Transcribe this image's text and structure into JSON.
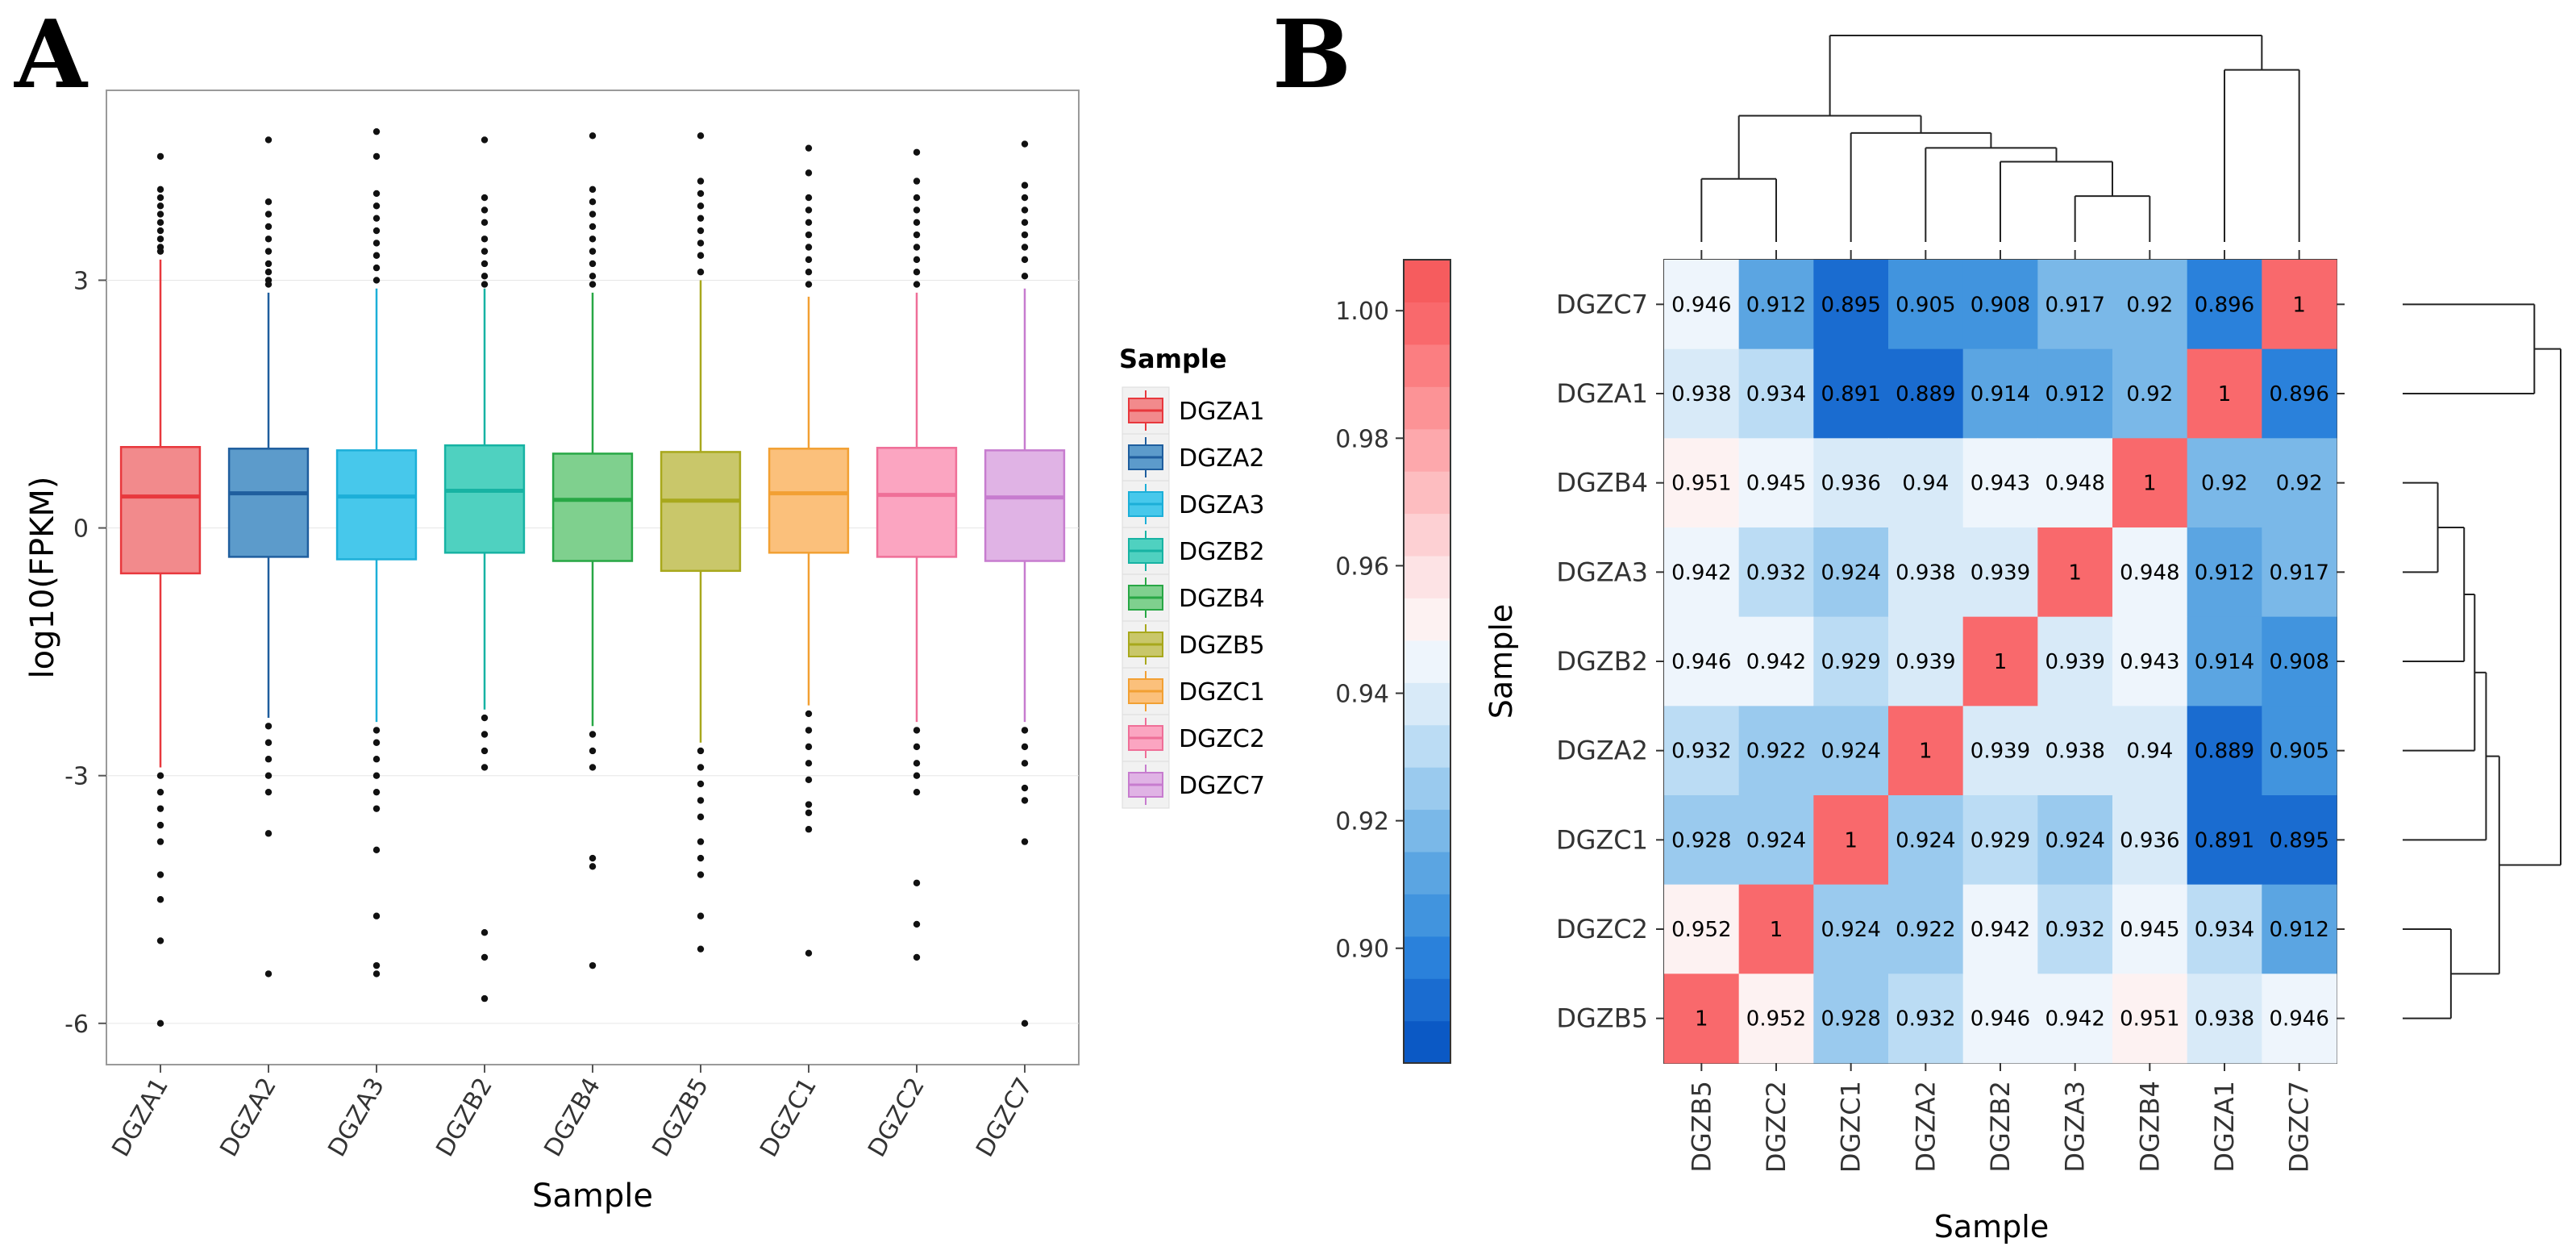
{
  "figure": {
    "panel_a_letter": "A",
    "panel_b_letter": "B"
  },
  "chart_data": [
    {
      "type": "box",
      "title": "",
      "xlabel": "Sample",
      "ylabel": "log10(FPKM)",
      "ylim": [
        -6.5,
        5.3
      ],
      "yticks": [
        3,
        0,
        -3,
        -6
      ],
      "ytick_labels": [
        "3",
        "0",
        "-3",
        "-6"
      ],
      "legend": {
        "title": "Sample",
        "position": "right",
        "entries": [
          "DGZA1",
          "DGZA2",
          "DGZA3",
          "DGZB2",
          "DGZB4",
          "DGZB5",
          "DGZC1",
          "DGZC2",
          "DGZC7"
        ]
      },
      "series": [
        {
          "name": "DGZA1",
          "color": "#E8383D",
          "fill": "#F28A8C",
          "q1": -0.55,
          "median": 0.38,
          "q3": 0.98,
          "whisker_low": -2.9,
          "whisker_high": 3.25,
          "outliers": [
            4.5,
            4.1,
            4.0,
            3.9,
            3.8,
            3.7,
            3.6,
            3.5,
            3.4,
            3.35,
            -3.0,
            -3.2,
            -3.4,
            -3.6,
            -3.8,
            -4.2,
            -4.5,
            -5.0,
            -6.0
          ]
        },
        {
          "name": "DGZA2",
          "color": "#1F5E9E",
          "fill": "#5C9BCB",
          "q1": -0.35,
          "median": 0.42,
          "q3": 0.96,
          "whisker_low": -2.3,
          "whisker_high": 2.85,
          "outliers": [
            4.7,
            3.95,
            3.8,
            3.65,
            3.5,
            3.35,
            3.2,
            3.1,
            3.0,
            2.95,
            -2.4,
            -2.6,
            -2.8,
            -3.0,
            -3.2,
            -3.7,
            -5.4
          ]
        },
        {
          "name": "DGZA3",
          "color": "#1CAFD8",
          "fill": "#47C8EB",
          "q1": -0.38,
          "median": 0.38,
          "q3": 0.94,
          "whisker_low": -2.35,
          "whisker_high": 2.9,
          "outliers": [
            4.8,
            4.5,
            4.05,
            3.9,
            3.75,
            3.6,
            3.45,
            3.3,
            3.15,
            3.0,
            -2.45,
            -2.6,
            -2.8,
            -3.0,
            -3.2,
            -3.4,
            -3.9,
            -4.7,
            -5.3,
            -5.4
          ]
        },
        {
          "name": "DGZB2",
          "color": "#17B3A3",
          "fill": "#4FD1C0",
          "q1": -0.3,
          "median": 0.45,
          "q3": 1.0,
          "whisker_low": -2.2,
          "whisker_high": 2.9,
          "outliers": [
            4.7,
            4.0,
            3.85,
            3.7,
            3.5,
            3.35,
            3.2,
            3.05,
            2.95,
            -2.3,
            -2.5,
            -2.7,
            -2.9,
            -4.9,
            -5.2,
            -5.7
          ]
        },
        {
          "name": "DGZB4",
          "color": "#28A745",
          "fill": "#7FD08E",
          "q1": -0.4,
          "median": 0.34,
          "q3": 0.9,
          "whisker_low": -2.4,
          "whisker_high": 2.85,
          "outliers": [
            4.75,
            4.1,
            3.95,
            3.8,
            3.65,
            3.5,
            3.35,
            3.2,
            3.05,
            2.95,
            -2.5,
            -2.7,
            -2.9,
            -4.0,
            -4.1,
            -5.3
          ]
        },
        {
          "name": "DGZB5",
          "color": "#A8A81C",
          "fill": "#C9C76A",
          "q1": -0.52,
          "median": 0.33,
          "q3": 0.92,
          "whisker_low": -2.6,
          "whisker_high": 3.0,
          "outliers": [
            4.75,
            4.2,
            4.05,
            3.9,
            3.75,
            3.6,
            3.45,
            3.3,
            3.1,
            -2.7,
            -2.9,
            -3.1,
            -3.3,
            -3.5,
            -3.8,
            -4.0,
            -4.2,
            -4.7,
            -5.1
          ]
        },
        {
          "name": "DGZC1",
          "color": "#F2A033",
          "fill": "#FBC07B",
          "q1": -0.3,
          "median": 0.42,
          "q3": 0.96,
          "whisker_low": -2.15,
          "whisker_high": 2.8,
          "outliers": [
            4.6,
            4.3,
            4.0,
            3.85,
            3.7,
            3.55,
            3.4,
            3.25,
            3.1,
            2.95,
            -2.25,
            -2.45,
            -2.65,
            -2.85,
            -3.05,
            -3.35,
            -3.45,
            -3.65,
            -5.15
          ]
        },
        {
          "name": "DGZC2",
          "color": "#EF6F98",
          "fill": "#FBA5C1",
          "q1": -0.35,
          "median": 0.4,
          "q3": 0.97,
          "whisker_low": -2.35,
          "whisker_high": 2.85,
          "outliers": [
            4.55,
            4.2,
            4.0,
            3.85,
            3.7,
            3.55,
            3.4,
            3.25,
            3.1,
            2.95,
            -2.45,
            -2.65,
            -2.85,
            -3.0,
            -3.2,
            -4.3,
            -4.8,
            -5.2
          ]
        },
        {
          "name": "DGZC7",
          "color": "#C77CCF",
          "fill": "#E0B3E5",
          "q1": -0.4,
          "median": 0.37,
          "q3": 0.94,
          "whisker_low": -2.35,
          "whisker_high": 2.9,
          "outliers": [
            4.65,
            4.15,
            4.0,
            3.85,
            3.7,
            3.55,
            3.4,
            3.25,
            3.05,
            -2.45,
            -2.65,
            -2.85,
            -3.15,
            -3.3,
            -3.8,
            -6.0
          ]
        }
      ]
    },
    {
      "type": "heatmap",
      "title": "",
      "xlabel": "Sample",
      "ylabel": "Sample",
      "columns": [
        "DGZB5",
        "DGZC2",
        "DGZC1",
        "DGZA2",
        "DGZB2",
        "DGZA3",
        "DGZB4",
        "DGZA1",
        "DGZC7"
      ],
      "rows": [
        "DGZC7",
        "DGZA1",
        "DGZB4",
        "DGZA3",
        "DGZB2",
        "DGZA2",
        "DGZC1",
        "DGZC2",
        "DGZB5"
      ],
      "values": [
        [
          0.946,
          0.912,
          0.895,
          0.905,
          0.908,
          0.917,
          0.92,
          0.896,
          1
        ],
        [
          0.938,
          0.934,
          0.891,
          0.889,
          0.914,
          0.912,
          0.92,
          1,
          0.896
        ],
        [
          0.951,
          0.945,
          0.936,
          0.94,
          0.943,
          0.948,
          1,
          0.92,
          0.92
        ],
        [
          0.942,
          0.932,
          0.924,
          0.938,
          0.939,
          1,
          0.948,
          0.912,
          0.917
        ],
        [
          0.946,
          0.942,
          0.929,
          0.939,
          1,
          0.939,
          0.943,
          0.914,
          0.908
        ],
        [
          0.932,
          0.922,
          0.924,
          1,
          0.939,
          0.938,
          0.94,
          0.889,
          0.905
        ],
        [
          0.928,
          0.924,
          1,
          0.924,
          0.929,
          0.924,
          0.936,
          0.891,
          0.895
        ],
        [
          0.952,
          1,
          0.924,
          0.922,
          0.942,
          0.932,
          0.945,
          0.934,
          0.912
        ],
        [
          1,
          0.952,
          0.928,
          0.932,
          0.946,
          0.942,
          0.951,
          0.938,
          0.946
        ]
      ],
      "colorbar": {
        "range": [
          0.882,
          1.008
        ],
        "ticks": [
          1.0,
          0.98,
          0.96,
          0.94,
          0.92,
          0.9
        ],
        "tick_labels": [
          "1.00",
          "0.98",
          "0.96",
          "0.94",
          "0.92",
          "0.90"
        ],
        "colors": [
          "#0B59C5",
          "#1A6CD0",
          "#2A81DB",
          "#4194DE",
          "#5BA5E2",
          "#7AB8E8",
          "#9ACAEE",
          "#BBDCF4",
          "#D8EAF8",
          "#EEF5FC",
          "#FDF2F2",
          "#FDE3E5",
          "#FDD0D3",
          "#FDBDC0",
          "#FDA8AC",
          "#FC9396",
          "#FB7E81",
          "#F9696C",
          "#F65C5E"
        ]
      },
      "dendrogram": {
        "leaves": [
          "DGZB5",
          "DGZC2",
          "DGZC1",
          "DGZA2",
          "DGZB2",
          "DGZA3",
          "DGZB4",
          "DGZA1",
          "DGZC7"
        ],
        "merges": [
          {
            "a": 0,
            "b": 1,
            "height": 0.55
          },
          {
            "a": 5,
            "b": 6,
            "height": 0.4
          },
          {
            "a": 4,
            "b": "m1",
            "height": 0.7
          },
          {
            "a": 3,
            "b": "m2",
            "height": 0.82
          },
          {
            "a": 2,
            "b": "m3",
            "height": 0.95
          },
          {
            "a": "m0",
            "b": "m4",
            "height": 1.1
          },
          {
            "a": 7,
            "b": 8,
            "height": 1.5
          },
          {
            "a": "m5",
            "b": "m6",
            "height": 1.8
          }
        ]
      }
    }
  ]
}
